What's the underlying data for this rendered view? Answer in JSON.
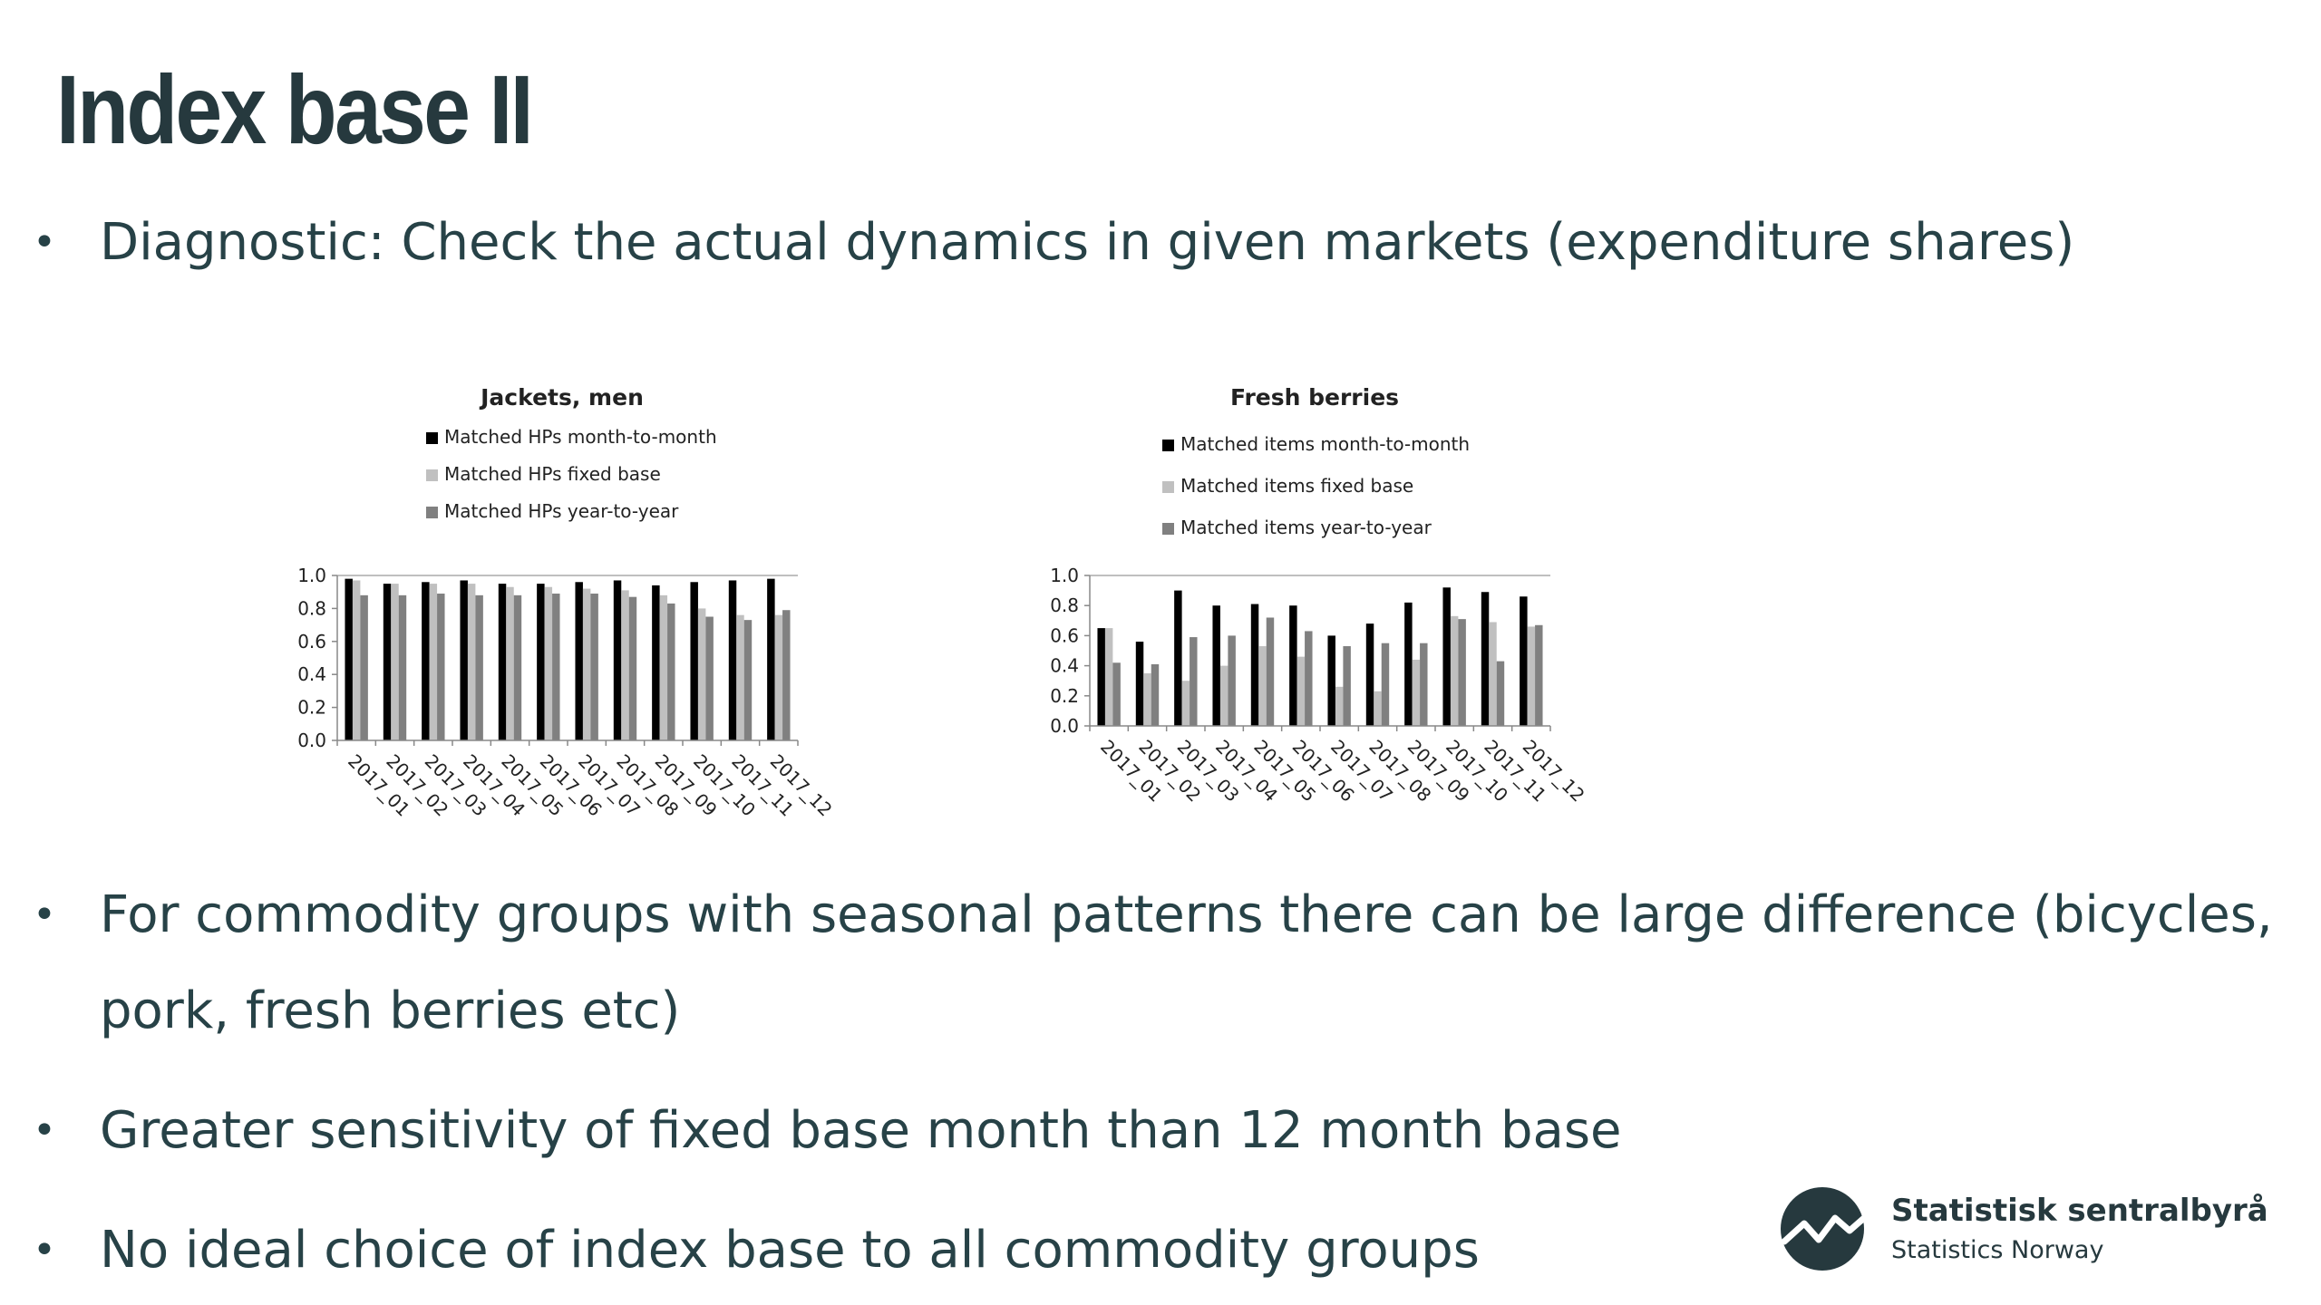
{
  "slide": {
    "title": "Index base II",
    "bullets": [
      "Diagnostic: Check the actual dynamics in given markets (expenditure shares)",
      "For commodity groups with seasonal patterns there can be large difference (bicycles,",
      "pork, fresh berries etc)",
      "Greater sensitivity of fixed base month than 12 month base",
      "No ideal choice of index base to all commodity groups"
    ],
    "bullet_symbol": "•"
  },
  "logo": {
    "name": "Statistisk sentralbyrå",
    "subtitle": "Statistics Norway",
    "icon": "ssb-logo-icon",
    "color": "#26393e"
  },
  "colors": {
    "series_month_to_month": "#000000",
    "series_fixed_base": "#c0c0c0",
    "series_year_to_year": "#808080",
    "text": "#274247"
  },
  "chart_data": [
    {
      "type": "bar",
      "title": "Jackets, men",
      "categories": [
        "2017_01",
        "2017_02",
        "2017_03",
        "2017_04",
        "2017_05",
        "2017_06",
        "2017_07",
        "2017_08",
        "2017_09",
        "2017_10",
        "2017_11",
        "2017_12"
      ],
      "ylim": [
        0,
        1.0
      ],
      "yticks": [
        "0.0",
        "0.2",
        "0.4",
        "0.6",
        "0.8",
        "1.0"
      ],
      "legend_position": "top",
      "series": [
        {
          "name": "Matched HPs month-to-month",
          "color": "#000000",
          "values": [
            0.98,
            0.95,
            0.96,
            0.97,
            0.95,
            0.95,
            0.96,
            0.97,
            0.94,
            0.96,
            0.97,
            0.98
          ]
        },
        {
          "name": "Matched HPs fixed base",
          "color": "#c0c0c0",
          "values": [
            0.97,
            0.95,
            0.95,
            0.95,
            0.93,
            0.93,
            0.92,
            0.91,
            0.88,
            0.8,
            0.76,
            0.76
          ]
        },
        {
          "name": "Matched HPs year-to-year",
          "color": "#808080",
          "values": [
            0.88,
            0.88,
            0.89,
            0.88,
            0.88,
            0.89,
            0.89,
            0.87,
            0.83,
            0.75,
            0.73,
            0.79
          ]
        }
      ]
    },
    {
      "type": "bar",
      "title": "Fresh berries",
      "categories": [
        "2017_01",
        "2017_02",
        "2017_03",
        "2017_04",
        "2017_05",
        "2017_06",
        "2017_07",
        "2017_08",
        "2017_09",
        "2017_10",
        "2017_11",
        "2017_12"
      ],
      "ylim": [
        0,
        1.0
      ],
      "yticks": [
        "0.0",
        "0.2",
        "0.4",
        "0.6",
        "0.8",
        "1.0"
      ],
      "legend_position": "top",
      "series": [
        {
          "name": "Matched items month-to-month",
          "color": "#000000",
          "values": [
            0.65,
            0.56,
            0.9,
            0.8,
            0.81,
            0.8,
            0.6,
            0.68,
            0.82,
            0.92,
            0.89,
            0.86
          ]
        },
        {
          "name": "Matched items fixed base",
          "color": "#c0c0c0",
          "values": [
            0.65,
            0.35,
            0.3,
            0.4,
            0.53,
            0.46,
            0.26,
            0.23,
            0.44,
            0.73,
            0.69,
            0.66
          ]
        },
        {
          "name": "Matched items year-to-year",
          "color": "#808080",
          "values": [
            0.42,
            0.41,
            0.59,
            0.6,
            0.72,
            0.63,
            0.53,
            0.55,
            0.55,
            0.71,
            0.43,
            0.67
          ]
        }
      ]
    }
  ]
}
